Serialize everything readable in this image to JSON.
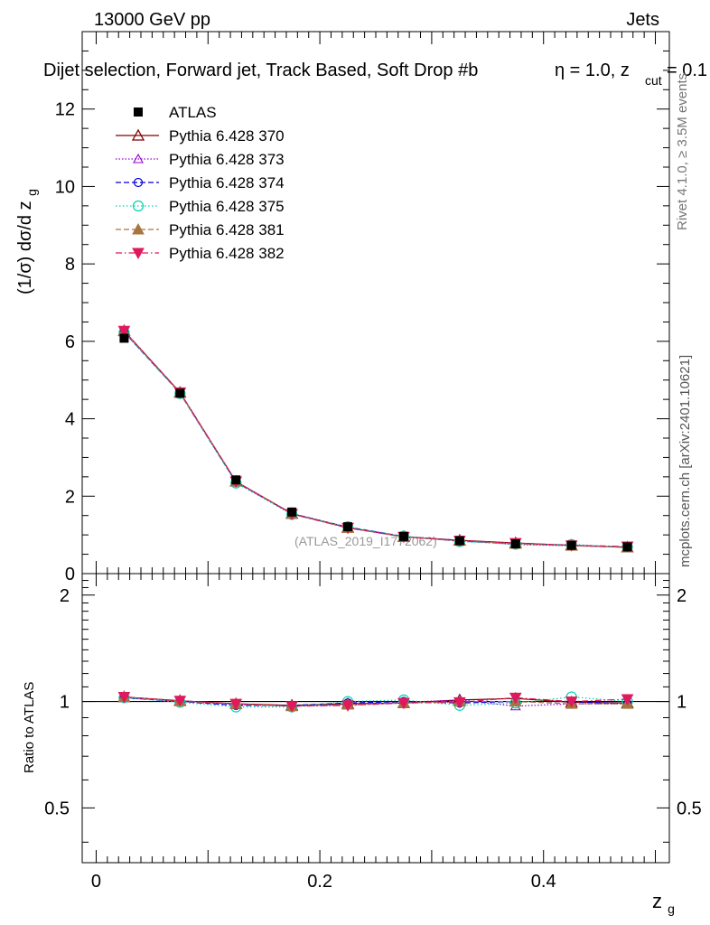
{
  "header": {
    "left": "13000 GeV pp",
    "right": "Jets",
    "title_main": "Dijet selection, Forward jet, Track Based, Soft Drop #b",
    "title_eta": "η = 1.0, z",
    "title_cut": "cut",
    "title_tail": " = 0.1"
  },
  "side": {
    "rivet": "Rivet 4.1.0, ≥ 3.5M events",
    "mcplots": "mcplots.cern.ch [arXiv:2401.10621]"
  },
  "watermark": "(ATLAS_2019_I1772062)",
  "chart_data": [
    {
      "type": "line",
      "panel": "main",
      "ylabel_prefix": "(1/σ) dσ/d z",
      "ylabel_sub": "g",
      "ylim": [
        0,
        14
      ],
      "xlim": [
        -0.0125,
        0.5125
      ],
      "yticks": [
        0,
        2,
        4,
        6,
        8,
        10,
        12
      ],
      "ytick_labels": [
        "0",
        "2",
        "4",
        "6",
        "8",
        "10",
        "12"
      ],
      "x": [
        0.025,
        0.075,
        0.125,
        0.175,
        0.225,
        0.275,
        0.325,
        0.375,
        0.425,
        0.475
      ],
      "data": {
        "name": "ATLAS",
        "values": [
          6.08,
          4.66,
          2.42,
          1.59,
          1.21,
          0.96,
          0.85,
          0.77,
          0.73,
          0.69
        ],
        "errors": [
          0.05,
          0.05,
          0.04,
          0.03,
          0.03,
          0.03,
          0.02,
          0.02,
          0.02,
          0.02
        ]
      },
      "series": [
        {
          "name": "Pythia 6.428 370",
          "color": "#800000",
          "marker": "triangle-open",
          "dash": "",
          "values": [
            6.27,
            4.68,
            2.38,
            1.55,
            1.19,
            0.95,
            0.86,
            0.79,
            0.73,
            0.68
          ]
        },
        {
          "name": "Pythia 6.428 373",
          "color": "#9400d3",
          "marker": "triangle-open-small",
          "dash": "1.5,2",
          "values": [
            6.25,
            4.67,
            2.37,
            1.54,
            1.18,
            0.96,
            0.86,
            0.75,
            0.72,
            0.68
          ]
        },
        {
          "name": "Pythia 6.428 374",
          "color": "#0000e0",
          "marker": "circle-open",
          "dash": "6,3",
          "values": [
            6.24,
            4.66,
            2.36,
            1.55,
            1.2,
            0.96,
            0.84,
            0.77,
            0.73,
            0.68
          ]
        },
        {
          "name": "Pythia 6.428 375",
          "color": "#00d4b0",
          "marker": "circle-open-large",
          "dash": "1.5,2.5",
          "values": [
            6.23,
            4.65,
            2.34,
            1.53,
            1.21,
            0.97,
            0.83,
            0.76,
            0.75,
            0.69
          ]
        },
        {
          "name": "Pythia 6.428 381",
          "color": "#a87440",
          "marker": "triangle-filled",
          "dash": "6,3",
          "values": [
            6.26,
            4.67,
            2.38,
            1.54,
            1.18,
            0.95,
            0.85,
            0.77,
            0.72,
            0.68
          ]
        },
        {
          "name": "Pythia 6.428 382",
          "color": "#e0185c",
          "marker": "triangle-down-filled",
          "dash": "7,3,1.5,3",
          "values": [
            6.27,
            4.68,
            2.38,
            1.54,
            1.18,
            0.95,
            0.85,
            0.79,
            0.73,
            0.7
          ]
        }
      ]
    },
    {
      "type": "line",
      "panel": "ratio",
      "ylabel": "Ratio to ATLAS",
      "xlabel": "z",
      "xlabel_sub": "g",
      "ylim": [
        0.35,
        2.3
      ],
      "xlim": [
        -0.0125,
        0.5125
      ],
      "yticks": [
        0.5,
        1,
        2
      ],
      "ytick_labels": [
        "0.5",
        "1",
        "2"
      ],
      "xticks": [
        0,
        0.2,
        0.4
      ],
      "xtick_labels": [
        "0",
        "0.2",
        "0.4"
      ],
      "reference": 1.0,
      "series": [
        {
          "name": "Pythia 6.428 370",
          "values": [
            1.03,
            1.005,
            0.985,
            0.975,
            0.985,
            0.99,
            1.01,
            1.02,
            0.995,
            0.99
          ]
        },
        {
          "name": "Pythia 6.428 373",
          "values": [
            1.025,
            1.0,
            0.98,
            0.97,
            0.975,
            0.995,
            1.01,
            0.97,
            0.985,
            0.985
          ]
        },
        {
          "name": "Pythia 6.428 374",
          "values": [
            1.025,
            1.0,
            0.975,
            0.975,
            0.99,
            1.0,
            0.99,
            1.0,
            1.0,
            0.985
          ]
        },
        {
          "name": "Pythia 6.428 375",
          "values": [
            1.025,
            0.995,
            0.965,
            0.965,
            1.0,
            1.01,
            0.975,
            0.99,
            1.03,
            1.0
          ]
        },
        {
          "name": "Pythia 6.428 381",
          "values": [
            1.03,
            1.002,
            0.985,
            0.97,
            0.98,
            0.99,
            1.0,
            1.0,
            0.985,
            0.985
          ]
        },
        {
          "name": "Pythia 6.428 382",
          "values": [
            1.03,
            1.005,
            0.985,
            0.97,
            0.975,
            0.99,
            0.995,
            1.025,
            1.0,
            1.015
          ]
        }
      ]
    }
  ]
}
